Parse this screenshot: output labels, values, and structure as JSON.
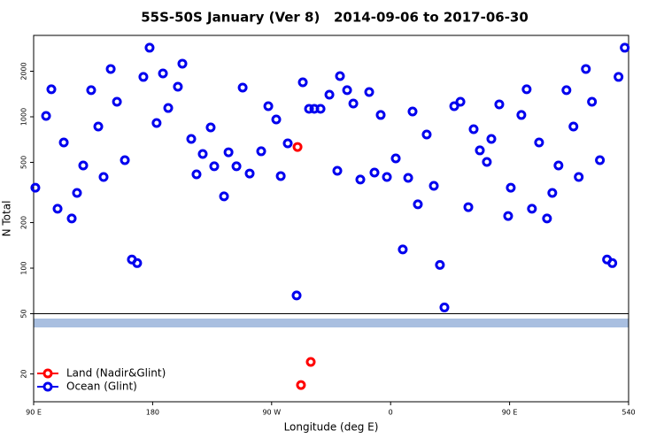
{
  "chart_data": {
    "type": "scatter",
    "title": "55S-50S January (Ver 8)   2014-09-06 to 2017-06-30",
    "x_label": "Longitude (deg E)",
    "y_label": "N Total",
    "log_y": true,
    "separator_value": 50,
    "legend": "bottom-left",
    "xlim": [
      90,
      540
    ],
    "ylim": [
      13.1,
      3450
    ],
    "xticks": [
      {
        "value": 90,
        "label": "90 E"
      },
      180,
      {
        "value": 270,
        "label": "90 W"
      },
      {
        "value": 360,
        "label": "0"
      },
      {
        "value": 450,
        "label": "90 E"
      },
      540
    ],
    "yticks": [
      20,
      50,
      100,
      200,
      500,
      1000,
      2000
    ],
    "series": [
      {
        "name": "Land (Nadir&Glint)",
        "color": "#ff0000",
        "x": [
          289.6,
          299.6,
          292.2
        ],
        "values": [
          632,
          24,
          16.9
        ]
      },
      {
        "name": "Ocean (Glint)",
        "color": "#0000ee",
        "x": [
          91.3,
          99.4,
          103.4,
          108.1,
          112.8,
          118.8,
          122.8,
          127.5,
          133.5,
          138.9,
          142.9,
          148.3,
          153,
          159,
          164.3,
          168.3,
          173,
          177.7,
          183,
          187.8,
          191.8,
          199.1,
          202.5,
          209.2,
          213.2,
          217.9,
          223.9,
          226.6,
          234,
          237.4,
          243.4,
          248.1,
          253.4,
          262.1,
          267.5,
          273.5,
          276.9,
          282.2,
          288.9,
          293.6,
          298.3,
          302.3,
          307,
          313.7,
          319.7,
          321.7,
          327.1,
          331.8,
          337.1,
          343.8,
          347.8,
          352.5,
          357.2,
          363.9,
          369.2,
          373.3,
          376.6,
          380.6,
          387.3,
          392.7,
          397.3,
          400.7,
          408.1,
          412.8,
          418.8,
          422.8,
          427.5,
          432.8,
          436.2,
          442.2,
          448.9,
          450.9,
          458.9,
          462.9,
          466.9,
          472.3,
          478.3,
          482.3,
          487,
          493,
          498.3,
          502.3,
          507.7,
          512.3,
          518.3,
          523.7,
          527.7,
          532.4,
          537.1
        ],
        "values": [
          340,
          1014,
          1520,
          247,
          677,
          213,
          314,
          477,
          1500,
          862,
          400,
          2070,
          1257,
          517,
          114,
          108,
          1834,
          2860,
          910,
          1935,
          1143,
          1580,
          2244,
          714,
          417,
          568,
          851,
          471,
          298,
          583,
          471,
          1560,
          422,
          592,
          1175,
          960,
          406,
          668,
          66,
          1690,
          1129,
          1129,
          1129,
          1400,
          440,
          1858,
          1500,
          1224,
          385,
          1458,
          428,
          1028,
          400,
          531,
          133,
          395,
          1084,
          264,
          764,
          350,
          105,
          55,
          1175,
          1257,
          253,
          828,
          600,
          503,
          714,
          1208,
          221,
          340,
          1028,
          1520,
          247,
          677,
          213,
          314,
          477,
          1500,
          862,
          400,
          2070,
          1257,
          517,
          114,
          108,
          1834,
          2860
        ]
      }
    ]
  }
}
